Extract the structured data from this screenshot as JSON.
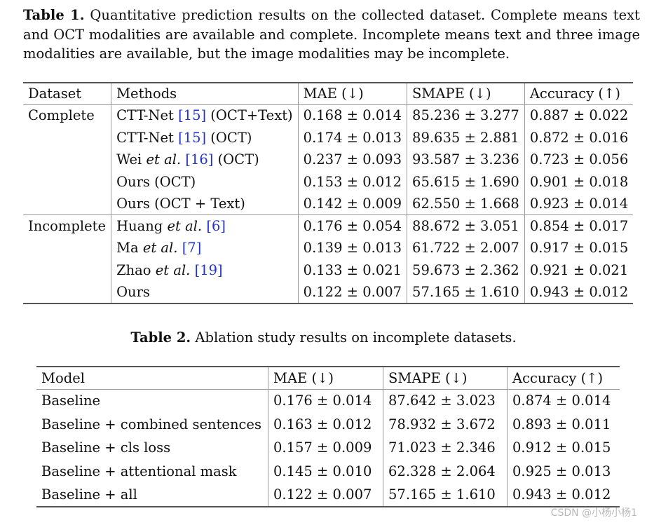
{
  "table1": {
    "caption_label": "Table 1.",
    "caption_text": " Quantitative prediction results on the collected dataset. Complete means text and OCT modalities are available and complete. Incomplete means text and three image modalities are available, but the image modalities may be incomplete.",
    "headers": [
      "Dataset",
      "Methods",
      "MAE (↓)",
      "SMAPE (↓)",
      "Accuracy (↑)"
    ],
    "rows": [
      {
        "dataset": "Complete",
        "pre": "CTT-Net ",
        "ref": "[15]",
        "post": " (OCT+Text)",
        "mae": "0.168 ± 0.014",
        "smape": "85.236 ± 3.277",
        "acc": "0.887 ± 0.022"
      },
      {
        "dataset": "",
        "pre": "CTT-Net ",
        "ref": "[15]",
        "post": " (OCT)",
        "mae": "0.174 ± 0.013",
        "smape": "89.635 ± 2.881",
        "acc": "0.872 ± 0.016"
      },
      {
        "dataset": "",
        "pre": "Wei ",
        "it": "et al.",
        "ref": "[16]",
        "post": " (OCT)",
        "mae": "0.237 ± 0.093",
        "smape": "93.587 ± 3.236",
        "acc": "0.723 ± 0.056"
      },
      {
        "dataset": "",
        "pre": "Ours (OCT)",
        "mae": "0.153 ± 0.012",
        "smape": "65.615 ± 1.690",
        "acc": "0.901 ± 0.018"
      },
      {
        "dataset": "",
        "pre": "Ours (OCT + Text)",
        "mae": "0.142 ± 0.009",
        "smape": "62.550 ± 1.668",
        "acc": "0.923 ± 0.014"
      },
      {
        "dataset": "Incomplete",
        "pre": "Huang ",
        "it": "et al.",
        "ref": "[6]",
        "mae": "0.176 ± 0.054",
        "smape": "88.672 ± 3.051",
        "acc": "0.854 ± 0.017"
      },
      {
        "dataset": "",
        "pre": "Ma ",
        "it": "et al.",
        "ref": "[7]",
        "mae": "0.139 ± 0.013",
        "smape": "61.722 ± 2.007",
        "acc": "0.917 ± 0.015"
      },
      {
        "dataset": "",
        "pre": "Zhao ",
        "it": "et al.",
        "ref": "[19]",
        "mae": "0.133 ± 0.021",
        "smape": "59.673 ± 2.362",
        "acc": "0.921 ± 0.021"
      },
      {
        "dataset": "",
        "pre": "Ours",
        "mae": "0.122 ± 0.007",
        "smape": "57.165 ± 1.610",
        "acc": "0.943 ± 0.012",
        "bold": true
      }
    ]
  },
  "table2": {
    "caption_label": "Table 2.",
    "caption_text": " Ablation study results on incomplete datasets.",
    "headers": [
      "Model",
      "MAE (↓)",
      "SMAPE (↓)",
      "Accuracy (↑)"
    ],
    "rows": [
      {
        "model": "Baseline",
        "mae": "0.176 ± 0.014",
        "smape": "87.642 ± 3.023",
        "acc": "0.874 ± 0.014"
      },
      {
        "model": "Baseline + combined sentences",
        "mae": "0.163 ± 0.012",
        "smape": "78.932 ± 3.672",
        "acc": "0.893 ± 0.011"
      },
      {
        "model": "Baseline + cls loss",
        "mae": "0.157 ± 0.009",
        "smape": "71.023 ± 2.346",
        "acc": "0.912 ± 0.015"
      },
      {
        "model": "Baseline + attentional mask",
        "mae": "0.145 ± 0.010",
        "smape": "62.328 ± 2.064",
        "acc": "0.925 ± 0.013"
      },
      {
        "model": "Baseline + all",
        "mae": "0.122 ± 0.007",
        "smape": "57.165 ± 1.610",
        "acc": "0.943 ± 0.012",
        "bold": true
      }
    ]
  },
  "watermark": "CSDN @小杨小杨1"
}
